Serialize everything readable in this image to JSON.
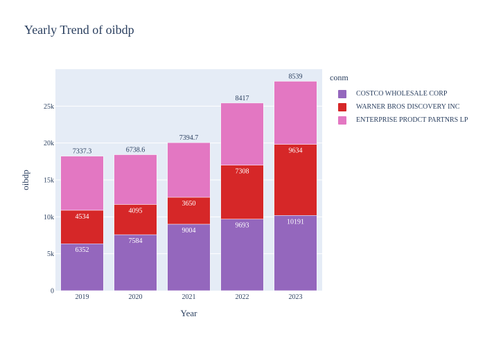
{
  "title": "Yearly Trend of oibdp",
  "legend_title": "conm",
  "chart_data": {
    "type": "bar",
    "barmode": "stack",
    "categories": [
      "2019",
      "2020",
      "2021",
      "2022",
      "2023"
    ],
    "xlabel": "Year",
    "ylabel": "oibdp",
    "ylim": [
      0,
      30000
    ],
    "yticks": [
      0,
      5000,
      10000,
      15000,
      20000,
      25000
    ],
    "ytick_labels": [
      "0",
      "5k",
      "10k",
      "15k",
      "20k",
      "25k"
    ],
    "grid": true,
    "legend_position": "right",
    "series": [
      {
        "name": "COSTCO WHOLESALE CORP",
        "color": "#9467bd",
        "values": [
          6352,
          7584,
          9004,
          9693,
          10191
        ],
        "labels": [
          "6352",
          "7584",
          "9004",
          "9693",
          "10191"
        ]
      },
      {
        "name": "WARNER BROS DISCOVERY INC",
        "color": "#d62728",
        "values": [
          4534,
          4095,
          3650,
          7308,
          9634
        ],
        "labels": [
          "4534",
          "4095",
          "3650",
          "7308",
          "9634"
        ]
      },
      {
        "name": "ENTERPRISE PRODCT PARTNRS LP",
        "color": "#e377c2",
        "values": [
          7337.3,
          6738.6,
          7394.7,
          8417,
          8539
        ],
        "labels": [
          "7337.3",
          "6738.6",
          "7394.7",
          "8417",
          "8539"
        ]
      }
    ]
  }
}
